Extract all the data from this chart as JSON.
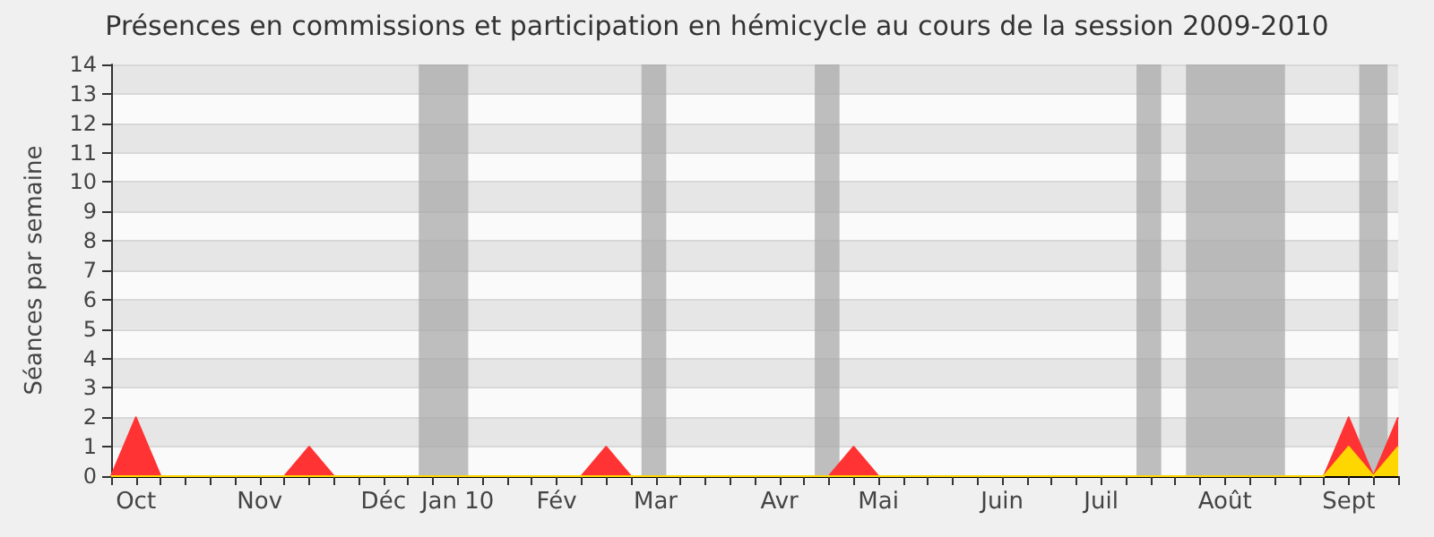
{
  "chart_data": {
    "type": "area",
    "title": "Présences en commissions et participation en hémicycle au cours de la session 2009-2010",
    "ylabel": "Séances par semaine",
    "x": [
      "2009-09-28",
      "2009-10-05",
      "2009-10-12",
      "2009-10-19",
      "2009-10-26",
      "2009-11-02",
      "2009-11-09",
      "2009-11-16",
      "2009-11-23",
      "2009-11-30",
      "2009-12-07",
      "2009-12-14",
      "2009-12-21",
      "2009-12-28",
      "2010-01-04",
      "2010-01-11",
      "2010-01-18",
      "2010-01-25",
      "2010-02-01",
      "2010-02-08",
      "2010-02-15",
      "2010-02-22",
      "2010-03-01",
      "2010-03-08",
      "2010-03-15",
      "2010-03-22",
      "2010-03-29",
      "2010-04-05",
      "2010-04-12",
      "2010-04-19",
      "2010-04-26",
      "2010-05-03",
      "2010-05-10",
      "2010-05-17",
      "2010-05-24",
      "2010-05-31",
      "2010-06-07",
      "2010-06-14",
      "2010-06-21",
      "2010-06-28",
      "2010-07-05",
      "2010-07-12",
      "2010-07-19",
      "2010-07-26",
      "2010-08-02",
      "2010-08-09",
      "2010-08-16",
      "2010-08-23",
      "2010-08-30",
      "2010-09-06",
      "2010-09-13",
      "2010-09-20",
      "2010-09-27"
    ],
    "series": [
      {
        "color": "#ff3333",
        "values": [
          0,
          2,
          0,
          0,
          0,
          0,
          0,
          0,
          1,
          0,
          0,
          0,
          0,
          0,
          0,
          0,
          0,
          0,
          0,
          0,
          1,
          0,
          0,
          0,
          0,
          0,
          0,
          0,
          0,
          0,
          1,
          0,
          0,
          0,
          0,
          0,
          0,
          0,
          0,
          0,
          0,
          0,
          0,
          0,
          0,
          0,
          0,
          0,
          0,
          0,
          2,
          0,
          2
        ]
      },
      {
        "color": "#ffd700",
        "values": [
          0,
          0,
          0,
          0,
          0,
          0,
          0,
          0,
          0,
          0,
          0,
          0,
          0,
          0,
          0,
          0,
          0,
          0,
          0,
          0,
          0,
          0,
          0,
          0,
          0,
          0,
          0,
          0,
          0,
          0,
          0,
          0,
          0,
          0,
          0,
          0,
          0,
          0,
          0,
          0,
          0,
          0,
          0,
          0,
          0,
          0,
          0,
          0,
          0,
          0,
          1,
          0,
          1
        ]
      }
    ],
    "xlim": [
      "2009-09-28",
      "2010-09-27"
    ],
    "xticks": [
      {
        "value": "2009-09-28",
        "label": null
      },
      {
        "value": "2009-10-05",
        "label": "Oct"
      },
      {
        "value": "2009-10-12",
        "label": null
      },
      {
        "value": "2009-10-19",
        "label": null
      },
      {
        "value": "2009-10-26",
        "label": null
      },
      {
        "value": "2009-11-02",
        "label": null
      },
      {
        "value": "2009-11-09",
        "label": "Nov"
      },
      {
        "value": "2009-11-16",
        "label": null
      },
      {
        "value": "2009-11-23",
        "label": null
      },
      {
        "value": "2009-11-30",
        "label": null
      },
      {
        "value": "2009-12-07",
        "label": null
      },
      {
        "value": "2009-12-14",
        "label": "Déc"
      },
      {
        "value": "2009-12-21",
        "label": null
      },
      {
        "value": "2009-12-28",
        "label": null
      },
      {
        "value": "2010-01-04",
        "label": "Jan 10"
      },
      {
        "value": "2010-01-11",
        "label": null
      },
      {
        "value": "2010-01-18",
        "label": null
      },
      {
        "value": "2010-01-25",
        "label": null
      },
      {
        "value": "2010-02-01",
        "label": "Fév"
      },
      {
        "value": "2010-02-08",
        "label": null
      },
      {
        "value": "2010-02-15",
        "label": null
      },
      {
        "value": "2010-02-22",
        "label": null
      },
      {
        "value": "2010-03-01",
        "label": "Mar"
      },
      {
        "value": "2010-03-08",
        "label": null
      },
      {
        "value": "2010-03-15",
        "label": null
      },
      {
        "value": "2010-03-22",
        "label": null
      },
      {
        "value": "2010-03-29",
        "label": null
      },
      {
        "value": "2010-04-05",
        "label": "Avr"
      },
      {
        "value": "2010-04-12",
        "label": null
      },
      {
        "value": "2010-04-19",
        "label": null
      },
      {
        "value": "2010-04-26",
        "label": null
      },
      {
        "value": "2010-05-03",
        "label": "Mai"
      },
      {
        "value": "2010-05-10",
        "label": null
      },
      {
        "value": "2010-05-17",
        "label": null
      },
      {
        "value": "2010-05-24",
        "label": null
      },
      {
        "value": "2010-05-31",
        "label": null
      },
      {
        "value": "2010-06-07",
        "label": "Juin"
      },
      {
        "value": "2010-06-14",
        "label": null
      },
      {
        "value": "2010-06-21",
        "label": null
      },
      {
        "value": "2010-06-28",
        "label": null
      },
      {
        "value": "2010-07-05",
        "label": "Juil"
      },
      {
        "value": "2010-07-12",
        "label": null
      },
      {
        "value": "2010-07-19",
        "label": null
      },
      {
        "value": "2010-07-26",
        "label": null
      },
      {
        "value": "2010-08-02",
        "label": null
      },
      {
        "value": "2010-08-09",
        "label": "Août"
      },
      {
        "value": "2010-08-16",
        "label": null
      },
      {
        "value": "2010-08-23",
        "label": null
      },
      {
        "value": "2010-08-30",
        "label": null
      },
      {
        "value": "2010-09-06",
        "label": null
      },
      {
        "value": "2010-09-13",
        "label": "Sept"
      },
      {
        "value": "2010-09-20",
        "label": null
      },
      {
        "value": "2010-09-27",
        "label": null
      }
    ],
    "ylim": [
      0,
      14
    ],
    "yticks": [
      0,
      1,
      2,
      3,
      4,
      5,
      6,
      7,
      8,
      9,
      10,
      11,
      12,
      13,
      14
    ],
    "bands": [
      {
        "axis": "x",
        "from": "2009-12-24",
        "to": "2010-01-07",
        "color": "#aaaaaa"
      },
      {
        "axis": "x",
        "from": "2010-02-25",
        "to": "2010-03-04",
        "color": "#aaaaaa"
      },
      {
        "axis": "x",
        "from": "2010-04-15",
        "to": "2010-04-22",
        "color": "#aaaaaa"
      },
      {
        "axis": "x",
        "from": "2010-07-15",
        "to": "2010-07-22",
        "color": "#aaaaaa"
      },
      {
        "axis": "x",
        "from": "2010-07-29",
        "to": "2010-08-26",
        "color": "#aaaaaa"
      },
      {
        "axis": "x",
        "from": "2010-09-16",
        "to": "2010-09-24",
        "color": "#aaaaaa"
      }
    ],
    "grid": "y",
    "marker": "none"
  }
}
